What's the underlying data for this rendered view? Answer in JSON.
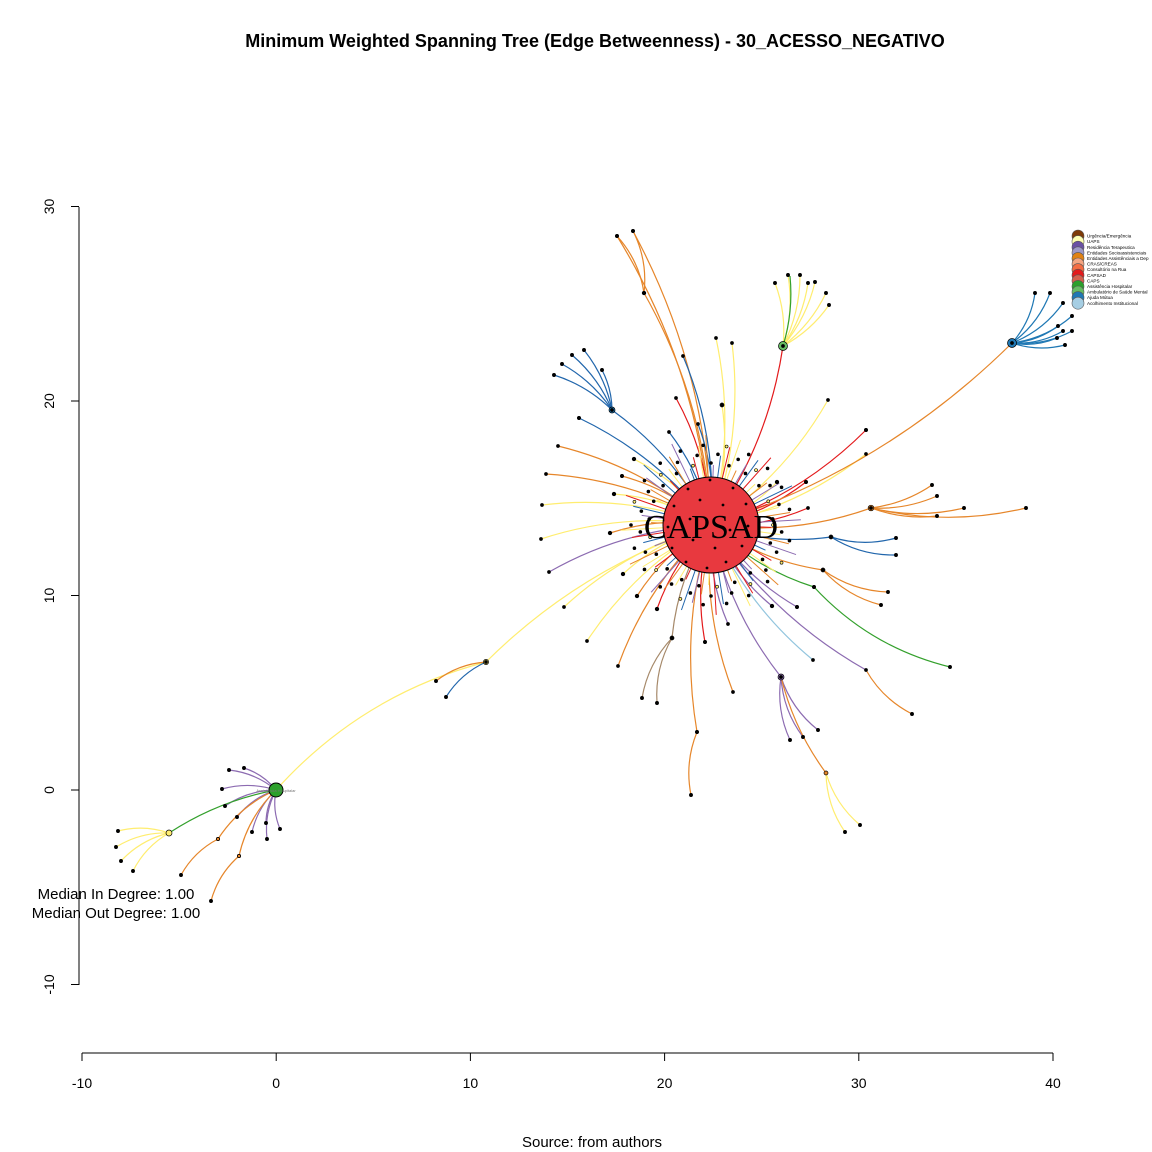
{
  "title": "Minimum Weighted Spanning Tree (Edge Betweenness) - 30_ACESSO_NEGATIVO",
  "caption": "Source: from authors",
  "stats": {
    "median_in": "Median In Degree: 1.00",
    "median_out": "Median Out Degree: 1.00"
  },
  "hub_label": "CAPSAD",
  "hub_label_small": "Assistência Hospitalar",
  "axes": {
    "x_ticks": [
      "-10",
      "0",
      "10",
      "20",
      "30",
      "40"
    ],
    "y_ticks": [
      "-10",
      "0",
      "10",
      "20",
      "30"
    ],
    "x_range": [
      -10,
      40
    ],
    "y_range": [
      -10,
      30
    ]
  },
  "legend": [
    {
      "label": "Urgência/Emergência",
      "color": "#7f3b08"
    },
    {
      "label": "UAPS",
      "color": "#ffffb2"
    },
    {
      "label": "Residência Terapeutica",
      "color": "#6a51a3"
    },
    {
      "label": "Entidades Socioassistenciais",
      "color": "#9e9ac8"
    },
    {
      "label": "Entidades Assistênciais a Dep",
      "color": "#e08214"
    },
    {
      "label": "CRAS/CREAS",
      "color": "#f4a582"
    },
    {
      "label": "Consultório na Rua",
      "color": "#f46d43"
    },
    {
      "label": "CAPSAD",
      "color": "#e31a1c"
    },
    {
      "label": "CAPS",
      "color": "#d6604d"
    },
    {
      "label": "Assistência Hospitalar",
      "color": "#2ca02c"
    },
    {
      "label": "Ambulatório de Saúde Mental",
      "color": "#66bd63"
    },
    {
      "label": "Ajuda Mútua",
      "color": "#1f78b4"
    },
    {
      "label": "Acolhimento Institucional",
      "color": "#a6cee3"
    }
  ],
  "colors": {
    "hub": "#e8393f",
    "hospital": "#2ca02c",
    "ajuda": "#1f78b4",
    "ambulatorio": "#66bd63",
    "orange": "#e6862a",
    "yellow": "#ffed6f",
    "red": "#e31a1c",
    "purple": "#8c6bb1",
    "blue": "#2166ac",
    "green": "#33a02c",
    "brown": "#a6896a",
    "lightblue": "#92c5de"
  }
}
